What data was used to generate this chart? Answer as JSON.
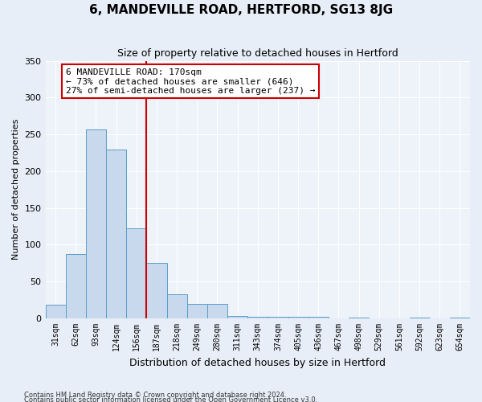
{
  "title": "6, MANDEVILLE ROAD, HERTFORD, SG13 8JG",
  "subtitle": "Size of property relative to detached houses in Hertford",
  "xlabel": "Distribution of detached houses by size in Hertford",
  "ylabel": "Number of detached properties",
  "footnote1": "Contains HM Land Registry data © Crown copyright and database right 2024.",
  "footnote2": "Contains public sector information licensed under the Open Government Licence v3.0.",
  "bar_labels": [
    "31sqm",
    "62sqm",
    "93sqm",
    "124sqm",
    "156sqm",
    "187sqm",
    "218sqm",
    "249sqm",
    "280sqm",
    "311sqm",
    "343sqm",
    "374sqm",
    "405sqm",
    "436sqm",
    "467sqm",
    "498sqm",
    "529sqm",
    "561sqm",
    "592sqm",
    "623sqm",
    "654sqm"
  ],
  "bar_values": [
    19,
    87,
    257,
    229,
    122,
    75,
    33,
    20,
    20,
    3,
    2,
    2,
    2,
    2,
    0,
    1,
    0,
    0,
    1,
    0,
    1
  ],
  "bar_color": "#c8d9ee",
  "bar_edgecolor": "#5b9ec9",
  "vline_x": 4.5,
  "vline_color": "#cc0000",
  "annotation_box_text": "6 MANDEVILLE ROAD: 170sqm\n← 73% of detached houses are smaller (646)\n27% of semi-detached houses are larger (237) →",
  "annotation_box_color": "#cc0000",
  "ylim": [
    0,
    350
  ],
  "yticks": [
    0,
    50,
    100,
    150,
    200,
    250,
    300,
    350
  ],
  "background_color": "#e8eef8",
  "plot_background": "#eef2f9",
  "title_fontsize": 11,
  "subtitle_fontsize": 9,
  "ylabel_fontsize": 8,
  "xlabel_fontsize": 9
}
